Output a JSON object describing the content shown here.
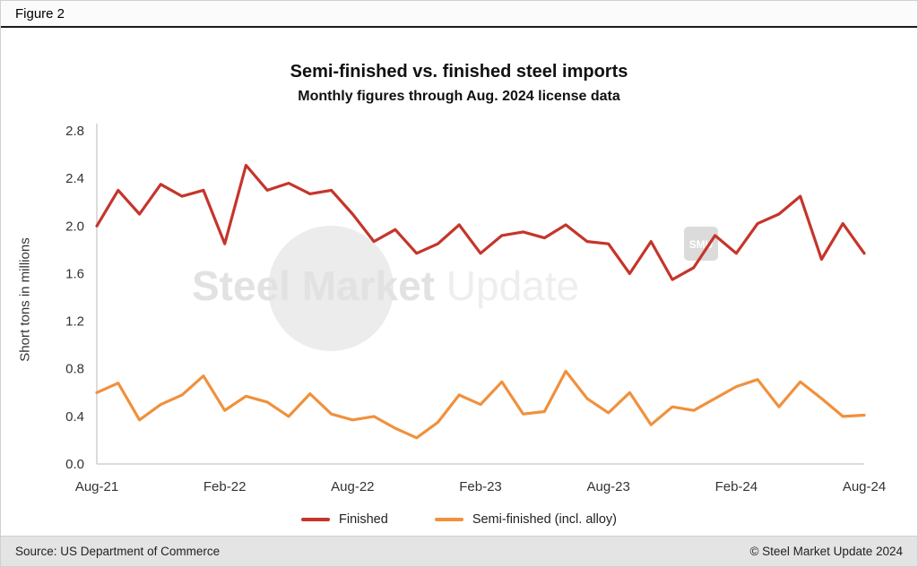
{
  "figure_label": "Figure 2",
  "watermark": {
    "primary": "Steel Market",
    "secondary": " Update",
    "logo": "SMU"
  },
  "footer": {
    "source": "Source: US Department of Commerce",
    "copyright": "© Steel Market Update 2024"
  },
  "chart_data": {
    "type": "line",
    "title": "Semi-finished vs. finished steel imports",
    "subtitle": "Monthly figures through Aug. 2024 license data",
    "ylabel": "Short tons in millions",
    "xlabel": "",
    "ylim": [
      0,
      2.8
    ],
    "yticks": [
      "0.0",
      "0.4",
      "0.8",
      "1.2",
      "1.6",
      "2.0",
      "2.4",
      "2.8"
    ],
    "x_ticks": [
      {
        "label": "Aug-21",
        "index": 0
      },
      {
        "label": "Feb-22",
        "index": 6
      },
      {
        "label": "Aug-22",
        "index": 12
      },
      {
        "label": "Feb-23",
        "index": 18
      },
      {
        "label": "Aug-23",
        "index": 24
      },
      {
        "label": "Feb-24",
        "index": 30
      },
      {
        "label": "Aug-24",
        "index": 36
      }
    ],
    "grid": false,
    "legend_position": "bottom",
    "axis_color": "#c8c8c8",
    "tick_text_color": "#333333",
    "series": [
      {
        "name": "Finished",
        "color": "#c5352b",
        "values": [
          2.0,
          2.3,
          2.1,
          2.35,
          2.25,
          2.3,
          1.85,
          2.51,
          2.3,
          2.36,
          2.27,
          2.3,
          2.1,
          1.87,
          1.97,
          1.77,
          1.85,
          2.01,
          1.77,
          1.92,
          1.95,
          1.9,
          2.01,
          1.87,
          1.85,
          1.6,
          1.87,
          1.55,
          1.65,
          1.92,
          1.77,
          2.02,
          2.1,
          2.25,
          1.72,
          2.02,
          1.77
        ]
      },
      {
        "name": "Semi-finished (incl. alloy)",
        "color": "#f0913d",
        "values": [
          0.6,
          0.68,
          0.37,
          0.5,
          0.58,
          0.74,
          0.45,
          0.57,
          0.52,
          0.4,
          0.59,
          0.42,
          0.37,
          0.4,
          0.3,
          0.22,
          0.35,
          0.58,
          0.5,
          0.69,
          0.42,
          0.44,
          0.78,
          0.55,
          0.43,
          0.6,
          0.33,
          0.48,
          0.45,
          0.55,
          0.65,
          0.71,
          0.48,
          0.69,
          0.55,
          0.4,
          0.41
        ]
      }
    ]
  }
}
